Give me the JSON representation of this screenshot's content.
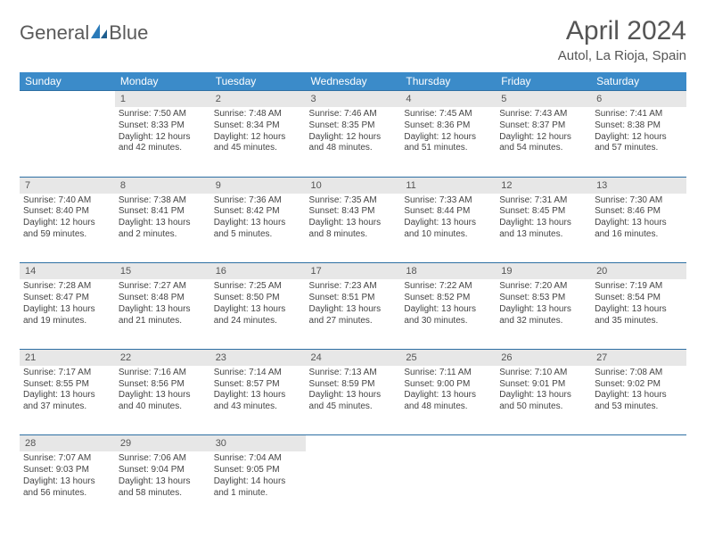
{
  "brand": {
    "name_part1": "General",
    "name_part2": "Blue"
  },
  "colors": {
    "header_bg": "#3b8bc9",
    "daynum_bg": "#e7e7e7",
    "row_border": "#2d6fa3",
    "text": "#444444",
    "title": "#555555"
  },
  "title": "April 2024",
  "location": "Autol, La Rioja, Spain",
  "weekdays": [
    "Sunday",
    "Monday",
    "Tuesday",
    "Wednesday",
    "Thursday",
    "Friday",
    "Saturday"
  ],
  "weeks": [
    {
      "daynums": [
        "",
        "1",
        "2",
        "3",
        "4",
        "5",
        "6"
      ],
      "cells": [
        null,
        {
          "sunrise": "7:50 AM",
          "sunset": "8:33 PM",
          "daylight": "12 hours and 42 minutes."
        },
        {
          "sunrise": "7:48 AM",
          "sunset": "8:34 PM",
          "daylight": "12 hours and 45 minutes."
        },
        {
          "sunrise": "7:46 AM",
          "sunset": "8:35 PM",
          "daylight": "12 hours and 48 minutes."
        },
        {
          "sunrise": "7:45 AM",
          "sunset": "8:36 PM",
          "daylight": "12 hours and 51 minutes."
        },
        {
          "sunrise": "7:43 AM",
          "sunset": "8:37 PM",
          "daylight": "12 hours and 54 minutes."
        },
        {
          "sunrise": "7:41 AM",
          "sunset": "8:38 PM",
          "daylight": "12 hours and 57 minutes."
        }
      ]
    },
    {
      "daynums": [
        "7",
        "8",
        "9",
        "10",
        "11",
        "12",
        "13"
      ],
      "cells": [
        {
          "sunrise": "7:40 AM",
          "sunset": "8:40 PM",
          "daylight": "12 hours and 59 minutes."
        },
        {
          "sunrise": "7:38 AM",
          "sunset": "8:41 PM",
          "daylight": "13 hours and 2 minutes."
        },
        {
          "sunrise": "7:36 AM",
          "sunset": "8:42 PM",
          "daylight": "13 hours and 5 minutes."
        },
        {
          "sunrise": "7:35 AM",
          "sunset": "8:43 PM",
          "daylight": "13 hours and 8 minutes."
        },
        {
          "sunrise": "7:33 AM",
          "sunset": "8:44 PM",
          "daylight": "13 hours and 10 minutes."
        },
        {
          "sunrise": "7:31 AM",
          "sunset": "8:45 PM",
          "daylight": "13 hours and 13 minutes."
        },
        {
          "sunrise": "7:30 AM",
          "sunset": "8:46 PM",
          "daylight": "13 hours and 16 minutes."
        }
      ]
    },
    {
      "daynums": [
        "14",
        "15",
        "16",
        "17",
        "18",
        "19",
        "20"
      ],
      "cells": [
        {
          "sunrise": "7:28 AM",
          "sunset": "8:47 PM",
          "daylight": "13 hours and 19 minutes."
        },
        {
          "sunrise": "7:27 AM",
          "sunset": "8:48 PM",
          "daylight": "13 hours and 21 minutes."
        },
        {
          "sunrise": "7:25 AM",
          "sunset": "8:50 PM",
          "daylight": "13 hours and 24 minutes."
        },
        {
          "sunrise": "7:23 AM",
          "sunset": "8:51 PM",
          "daylight": "13 hours and 27 minutes."
        },
        {
          "sunrise": "7:22 AM",
          "sunset": "8:52 PM",
          "daylight": "13 hours and 30 minutes."
        },
        {
          "sunrise": "7:20 AM",
          "sunset": "8:53 PM",
          "daylight": "13 hours and 32 minutes."
        },
        {
          "sunrise": "7:19 AM",
          "sunset": "8:54 PM",
          "daylight": "13 hours and 35 minutes."
        }
      ]
    },
    {
      "daynums": [
        "21",
        "22",
        "23",
        "24",
        "25",
        "26",
        "27"
      ],
      "cells": [
        {
          "sunrise": "7:17 AM",
          "sunset": "8:55 PM",
          "daylight": "13 hours and 37 minutes."
        },
        {
          "sunrise": "7:16 AM",
          "sunset": "8:56 PM",
          "daylight": "13 hours and 40 minutes."
        },
        {
          "sunrise": "7:14 AM",
          "sunset": "8:57 PM",
          "daylight": "13 hours and 43 minutes."
        },
        {
          "sunrise": "7:13 AM",
          "sunset": "8:59 PM",
          "daylight": "13 hours and 45 minutes."
        },
        {
          "sunrise": "7:11 AM",
          "sunset": "9:00 PM",
          "daylight": "13 hours and 48 minutes."
        },
        {
          "sunrise": "7:10 AM",
          "sunset": "9:01 PM",
          "daylight": "13 hours and 50 minutes."
        },
        {
          "sunrise": "7:08 AM",
          "sunset": "9:02 PM",
          "daylight": "13 hours and 53 minutes."
        }
      ]
    },
    {
      "daynums": [
        "28",
        "29",
        "30",
        "",
        "",
        "",
        ""
      ],
      "cells": [
        {
          "sunrise": "7:07 AM",
          "sunset": "9:03 PM",
          "daylight": "13 hours and 56 minutes."
        },
        {
          "sunrise": "7:06 AM",
          "sunset": "9:04 PM",
          "daylight": "13 hours and 58 minutes."
        },
        {
          "sunrise": "7:04 AM",
          "sunset": "9:05 PM",
          "daylight": "14 hours and 1 minute."
        },
        null,
        null,
        null,
        null
      ]
    }
  ],
  "labels": {
    "sunrise": "Sunrise: ",
    "sunset": "Sunset: ",
    "daylight": "Daylight: "
  }
}
